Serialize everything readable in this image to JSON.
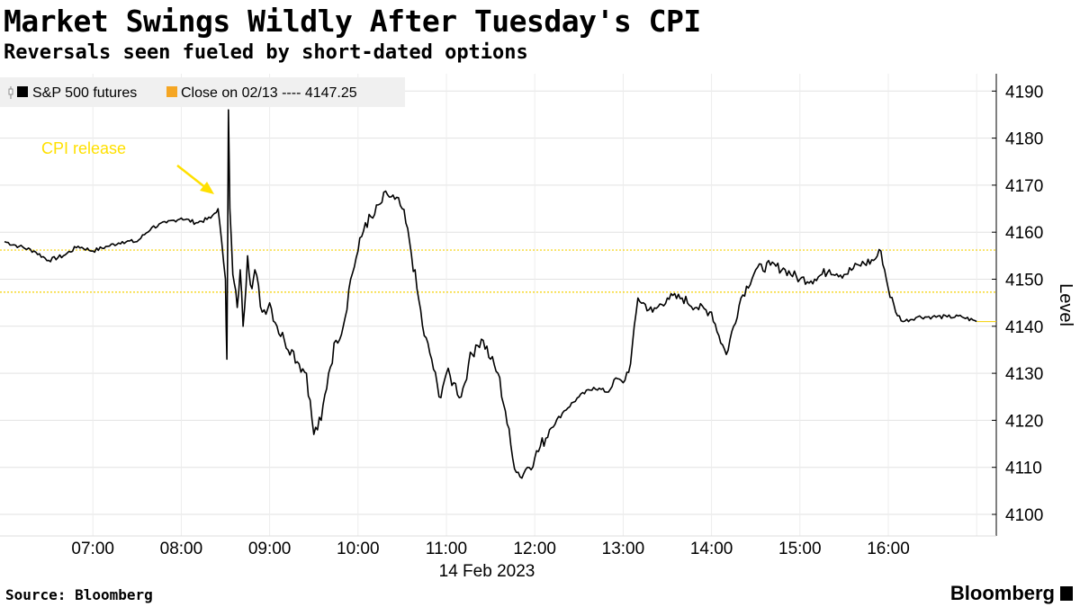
{
  "title": "Market Swings Wildly After Tuesday's CPI",
  "subtitle": "Reversals seen fueled by short-dated options",
  "source": "Source: Bloomberg",
  "brand": "Bloomberg",
  "chart_data": {
    "type": "line",
    "title": "Market Swings Wildly After Tuesday's CPI",
    "subtitle": "Reversals seen fueled by short-dated options",
    "xlabel": "14 Feb 2023",
    "ylabel": "Level",
    "x_ticks": [
      "07:00",
      "08:00",
      "09:00",
      "10:00",
      "11:00",
      "12:00",
      "13:00",
      "14:00",
      "15:00",
      "16:00"
    ],
    "y_ticks": [
      4100,
      4110,
      4120,
      4130,
      4140,
      4150,
      4160,
      4170,
      4180,
      4190
    ],
    "ylim": [
      4096,
      4192
    ],
    "xlim": [
      "06:00",
      "17:10"
    ],
    "grid": "horizontal dotted",
    "legend_position": "top-left",
    "legend": [
      {
        "label": "S&P 500 futures",
        "color": "#000000"
      },
      {
        "label": "Close on 02/13 ---- 4147.25",
        "color": "#f5a623"
      }
    ],
    "annotations": [
      {
        "text": "CPI release",
        "x": "08:30",
        "color": "#ffe000"
      }
    ],
    "reference_lines": [
      {
        "name": "Close on 02/13",
        "y": 4147.25,
        "color": "#f5d000",
        "style": "dotted"
      },
      {
        "y": 4156.2,
        "color": "#f5d000",
        "style": "dotted"
      }
    ],
    "colors": {
      "series": "#000000",
      "reference": "#f5d000",
      "annotation": "#ffe000",
      "legend_close": "#f5a623"
    },
    "series": [
      {
        "name": "S&P 500 futures",
        "x": [
          "06:00",
          "06:10",
          "06:20",
          "06:30",
          "06:40",
          "06:50",
          "07:00",
          "07:10",
          "07:20",
          "07:30",
          "07:40",
          "07:50",
          "08:00",
          "08:10",
          "08:20",
          "08:25",
          "08:30",
          "08:31",
          "08:32",
          "08:33",
          "08:35",
          "08:38",
          "08:40",
          "08:42",
          "08:45",
          "08:48",
          "08:50",
          "08:55",
          "09:00",
          "09:05",
          "09:10",
          "09:15",
          "09:20",
          "09:25",
          "09:30",
          "09:35",
          "09:40",
          "09:45",
          "09:50",
          "09:55",
          "10:00",
          "10:05",
          "10:10",
          "10:15",
          "10:20",
          "10:25",
          "10:30",
          "10:35",
          "10:40",
          "10:45",
          "10:50",
          "10:55",
          "11:00",
          "11:05",
          "11:10",
          "11:15",
          "11:20",
          "11:25",
          "11:30",
          "11:35",
          "11:40",
          "11:45",
          "11:50",
          "11:55",
          "12:00",
          "12:10",
          "12:20",
          "12:30",
          "12:40",
          "12:50",
          "12:55",
          "13:00",
          "13:05",
          "13:10",
          "13:20",
          "13:30",
          "13:40",
          "13:50",
          "14:00",
          "14:05",
          "14:10",
          "14:20",
          "14:30",
          "14:40",
          "14:50",
          "15:00",
          "15:10",
          "15:20",
          "15:30",
          "15:40",
          "15:50",
          "15:55",
          "16:00",
          "16:05",
          "16:10",
          "16:20",
          "16:30",
          "16:40",
          "16:50",
          "17:00"
        ],
        "values": [
          4158,
          4157,
          4156,
          4154,
          4155,
          4157,
          4156,
          4157,
          4158,
          4158,
          4161,
          4162,
          4163,
          4162,
          4163,
          4165,
          4150,
          4133,
          4186,
          4165,
          4151,
          4144,
          4152,
          4140,
          4155,
          4148,
          4152,
          4143,
          4145,
          4140,
          4137,
          4135,
          4132,
          4130,
          4117,
          4120,
          4130,
          4137,
          4140,
          4150,
          4156,
          4162,
          4163,
          4166,
          4168,
          4167,
          4165,
          4158,
          4148,
          4138,
          4133,
          4125,
          4130,
          4128,
          4125,
          4132,
          4136,
          4137,
          4133,
          4130,
          4122,
          4112,
          4108,
          4110,
          4112,
          4118,
          4122,
          4125,
          4127,
          4126,
          4129,
          4128,
          4132,
          4146,
          4143,
          4146,
          4146,
          4144,
          4143,
          4138,
          4134,
          4146,
          4152,
          4153,
          4152,
          4150,
          4150,
          4152,
          4151,
          4153,
          4154,
          4156,
          4148,
          4143,
          4141,
          4142,
          4142,
          4142,
          4142,
          4141
        ]
      }
    ]
  }
}
